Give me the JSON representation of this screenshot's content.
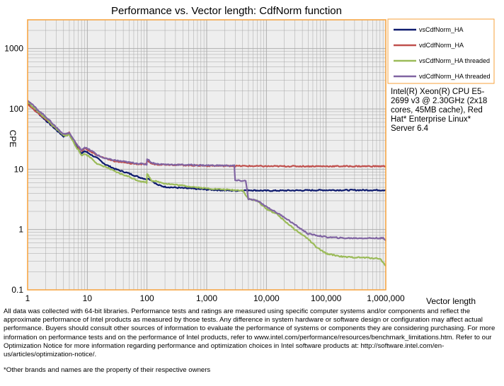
{
  "chart_data": {
    "type": "line",
    "title": "Performance vs. Vector length: CdfNorm function",
    "xlabel": "Vector length",
    "ylabel": "CPE",
    "x_scale": "log",
    "y_scale": "log",
    "xlim": [
      1,
      1000000
    ],
    "ylim": [
      0.1,
      3000
    ],
    "grid": true,
    "legend_position": "right-top",
    "x_ticks": [
      1,
      10,
      100,
      1000,
      10000,
      100000,
      1000000
    ],
    "x_tick_labels": [
      "1",
      "10",
      "100",
      "1,000",
      "10,000",
      "100,000",
      "1,000,000"
    ],
    "y_ticks": [
      0.1,
      1,
      10,
      100,
      1000
    ],
    "y_tick_labels": [
      "0.1",
      "1",
      "10",
      "100",
      "1000"
    ],
    "series": [
      {
        "name": "vsCdfNorm_HA",
        "color": "#0d1a6e",
        "points": [
          [
            1,
            125
          ],
          [
            1.5,
            85
          ],
          [
            2,
            65
          ],
          [
            3,
            45
          ],
          [
            4,
            35
          ],
          [
            5,
            38
          ],
          [
            6,
            28
          ],
          [
            7,
            22
          ],
          [
            8,
            18
          ],
          [
            9,
            20
          ],
          [
            10,
            19
          ],
          [
            12,
            17
          ],
          [
            15,
            15
          ],
          [
            20,
            12
          ],
          [
            30,
            10
          ],
          [
            50,
            8.5
          ],
          [
            70,
            7.5
          ],
          [
            99,
            6.8
          ],
          [
            100,
            7.2
          ],
          [
            120,
            6.5
          ],
          [
            150,
            5.5
          ],
          [
            200,
            5.1
          ],
          [
            500,
            4.8
          ],
          [
            1000,
            4.6
          ],
          [
            3000,
            4.4
          ],
          [
            5000,
            4.5
          ],
          [
            10000,
            4.4
          ],
          [
            100000,
            4.5
          ],
          [
            1000000,
            4.5
          ]
        ]
      },
      {
        "name": "vdCdfNorm_HA",
        "color": "#c0504d",
        "points": [
          [
            1,
            120
          ],
          [
            1.5,
            85
          ],
          [
            2,
            68
          ],
          [
            3,
            48
          ],
          [
            4,
            37
          ],
          [
            5,
            40
          ],
          [
            6,
            30
          ],
          [
            7,
            24
          ],
          [
            8,
            20
          ],
          [
            9,
            22
          ],
          [
            10,
            21
          ],
          [
            12,
            19
          ],
          [
            15,
            17
          ],
          [
            20,
            15
          ],
          [
            30,
            13.5
          ],
          [
            50,
            12.5
          ],
          [
            70,
            12.2
          ],
          [
            99,
            12
          ],
          [
            100,
            14
          ],
          [
            120,
            12.3
          ],
          [
            150,
            12
          ],
          [
            200,
            12
          ],
          [
            500,
            11.6
          ],
          [
            1000,
            11.4
          ],
          [
            5000,
            11.3
          ],
          [
            10000,
            11.2
          ],
          [
            100000,
            11.2
          ],
          [
            1000000,
            11.2
          ]
        ]
      },
      {
        "name": "vsCdfNorm_HA threaded",
        "color": "#9bbb59",
        "points": [
          [
            1,
            130
          ],
          [
            1.5,
            90
          ],
          [
            2,
            70
          ],
          [
            3,
            47
          ],
          [
            4,
            36
          ],
          [
            5,
            37
          ],
          [
            6,
            27
          ],
          [
            7,
            21
          ],
          [
            8,
            17
          ],
          [
            9,
            18
          ],
          [
            10,
            17
          ],
          [
            12,
            15
          ],
          [
            15,
            12
          ],
          [
            20,
            11
          ],
          [
            30,
            9
          ],
          [
            50,
            7.5
          ],
          [
            70,
            6.5
          ],
          [
            99,
            6
          ],
          [
            100,
            8.5
          ],
          [
            120,
            6.5
          ],
          [
            150,
            6.2
          ],
          [
            200,
            5.8
          ],
          [
            500,
            5.2
          ],
          [
            1000,
            4.8
          ],
          [
            2000,
            4.6
          ],
          [
            3000,
            4.5
          ],
          [
            4000,
            4.5
          ],
          [
            5000,
            3.2
          ],
          [
            7000,
            3
          ],
          [
            10000,
            2.2
          ],
          [
            15000,
            1.8
          ],
          [
            20000,
            1.4
          ],
          [
            30000,
            1
          ],
          [
            50000,
            0.7
          ],
          [
            70000,
            0.5
          ],
          [
            100000,
            0.4
          ],
          [
            200000,
            0.35
          ],
          [
            500000,
            0.34
          ],
          [
            800000,
            0.33
          ],
          [
            1000000,
            0.25
          ]
        ]
      },
      {
        "name": "vdCdfNorm_HA threaded",
        "color": "#8064a2",
        "points": [
          [
            1,
            140
          ],
          [
            1.5,
            95
          ],
          [
            2,
            75
          ],
          [
            3,
            50
          ],
          [
            4,
            38
          ],
          [
            5,
            40
          ],
          [
            6,
            30
          ],
          [
            7,
            24
          ],
          [
            8,
            21
          ],
          [
            9,
            23
          ],
          [
            10,
            22
          ],
          [
            12,
            20
          ],
          [
            15,
            17
          ],
          [
            20,
            15
          ],
          [
            30,
            14
          ],
          [
            50,
            13
          ],
          [
            70,
            12.5
          ],
          [
            99,
            12
          ],
          [
            100,
            15
          ],
          [
            120,
            12.8
          ],
          [
            150,
            12.2
          ],
          [
            200,
            12
          ],
          [
            500,
            11.8
          ],
          [
            1000,
            11.6
          ],
          [
            2000,
            11.5
          ],
          [
            2900,
            11.5
          ],
          [
            3000,
            6.5
          ],
          [
            4500,
            6.4
          ],
          [
            5000,
            3.2
          ],
          [
            7000,
            3
          ],
          [
            10000,
            2.4
          ],
          [
            20000,
            1.6
          ],
          [
            30000,
            1.2
          ],
          [
            50000,
            0.85
          ],
          [
            100000,
            0.75
          ],
          [
            200000,
            0.72
          ],
          [
            500000,
            0.72
          ],
          [
            900000,
            0.72
          ],
          [
            1000000,
            0.65
          ]
        ]
      }
    ]
  },
  "system_info": "Intel(R) Xeon(R) CPU E5-2699 v3 @ 2.30GHz (2x18 cores, 45MB cache), Red Hat* Enterprise Linux* Server 6.4",
  "disclaimer": "All data was collected with 64-bit libraries. Performance tests and ratings are measured using specific computer systems and/or components and reflect the approximate performance of Intel products as measured by those tests. Any difference in system hardware or software design or configuration may affect actual performance. Buyers should consult other sources of information to evaluate the performance of systems or components they are considering purchasing. For more information on performance tests and on the performance of Intel products, refer to www.intel.com/performance/resources/benchmark_limitations.htm. Refer to our Optimization Notice for more information regarding performance and optimization choices in Intel software products at: http://software.intel.com/en-us/articles/optimization-notice/.",
  "footnote": "*Other brands and names are the property of their respective owners",
  "colors": {
    "plot_border": "#f7a23b",
    "plot_background": "#eeeeee",
    "grid": "#a6a6a6"
  }
}
